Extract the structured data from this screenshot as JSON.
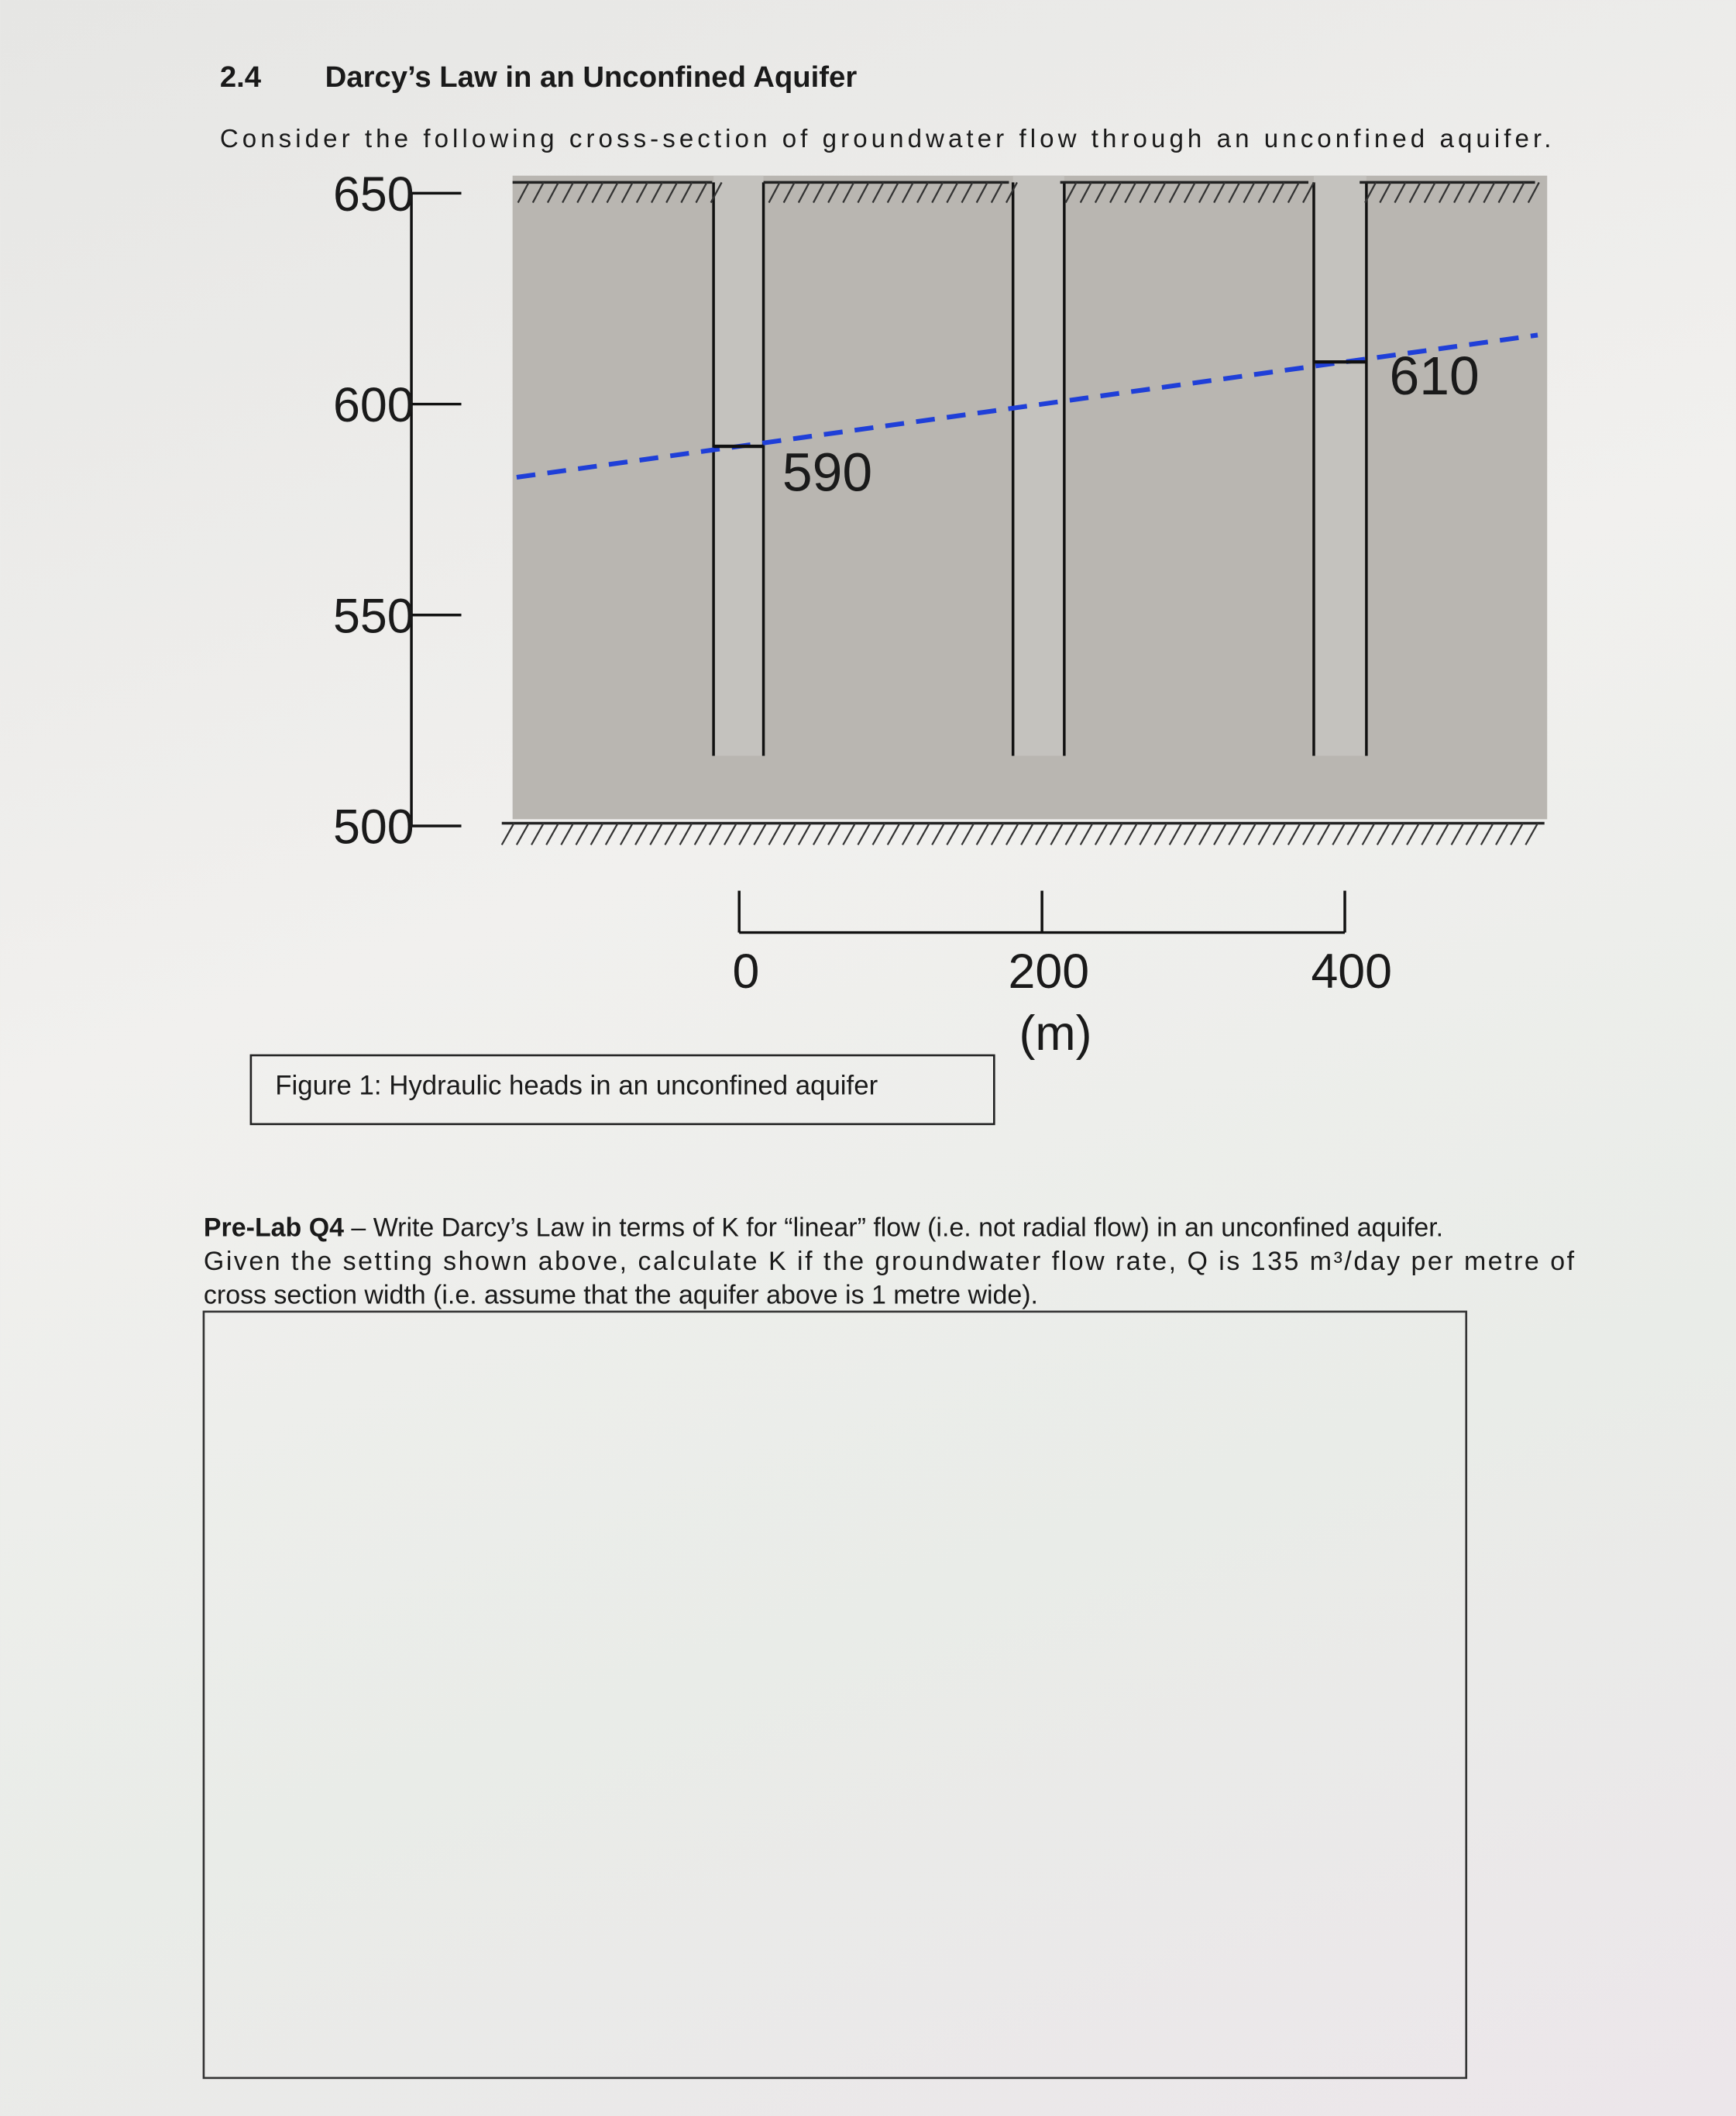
{
  "section": {
    "number": "2.4",
    "title": "Darcy’s Law in an Unconfined Aquifer",
    "intro": "Consider the following cross-section of groundwater flow through an unconfined aquifer."
  },
  "figure": {
    "elevation_ticks": [
      650,
      600,
      550,
      500
    ],
    "heads": [
      590,
      610
    ],
    "distance_ticks": [
      0,
      200,
      400
    ],
    "distance_unit": "(m)",
    "caption": "Figure 1: Hydraulic heads in an unconfined aquifer"
  },
  "question": {
    "label": "Pre-Lab Q4",
    "lines": [
      "– Write Darcy’s Law in terms of K for “linear” flow (i.e. not radial flow) in an unconfined aquifer.",
      "Given the setting shown above, calculate K if the groundwater flow rate, Q is 135 m³/day per metre of",
      "cross section width (i.e. assume that the aquifer above is 1 metre wide)."
    ]
  }
}
